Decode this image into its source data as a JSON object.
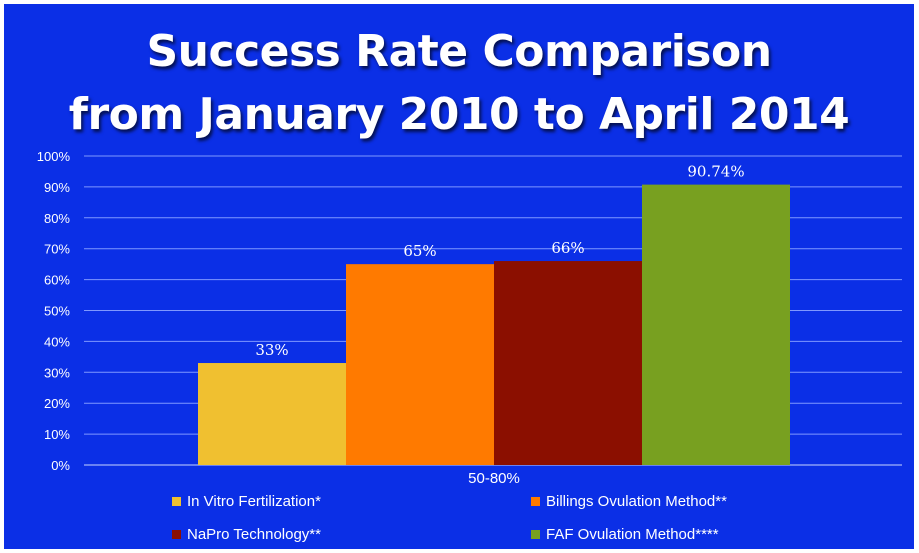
{
  "chart_data": {
    "type": "bar",
    "title_line1": "Success Rate Comparison",
    "title_line2": "from January 2010 to April 2014",
    "y_tick_labels": [
      "0%",
      "10%",
      "20%",
      "30%",
      "40%",
      "50%",
      "60%",
      "70%",
      "80%",
      "90%",
      "100%"
    ],
    "ylim": [
      0,
      100
    ],
    "grid": true,
    "legend_position": "bottom",
    "x_category_label": "50-80%",
    "series": [
      {
        "name": "In Vitro Fertilization*",
        "value": 33,
        "label": "33%",
        "color": "#f0c030"
      },
      {
        "name": "Billings Ovulation Method**",
        "value": 65,
        "label": "65%",
        "color": "#ff7a00"
      },
      {
        "name": "NaPro Technology**",
        "value": 66,
        "label": "66%",
        "color": "#8b0f00"
      },
      {
        "name": "FAF Ovulation Method****",
        "value": 90.74,
        "label": "90.74%",
        "color": "#78a020"
      }
    ]
  },
  "colors": {
    "background": "#0b2fe6",
    "gridline": "#7f98ff",
    "text": "#ffffff"
  }
}
